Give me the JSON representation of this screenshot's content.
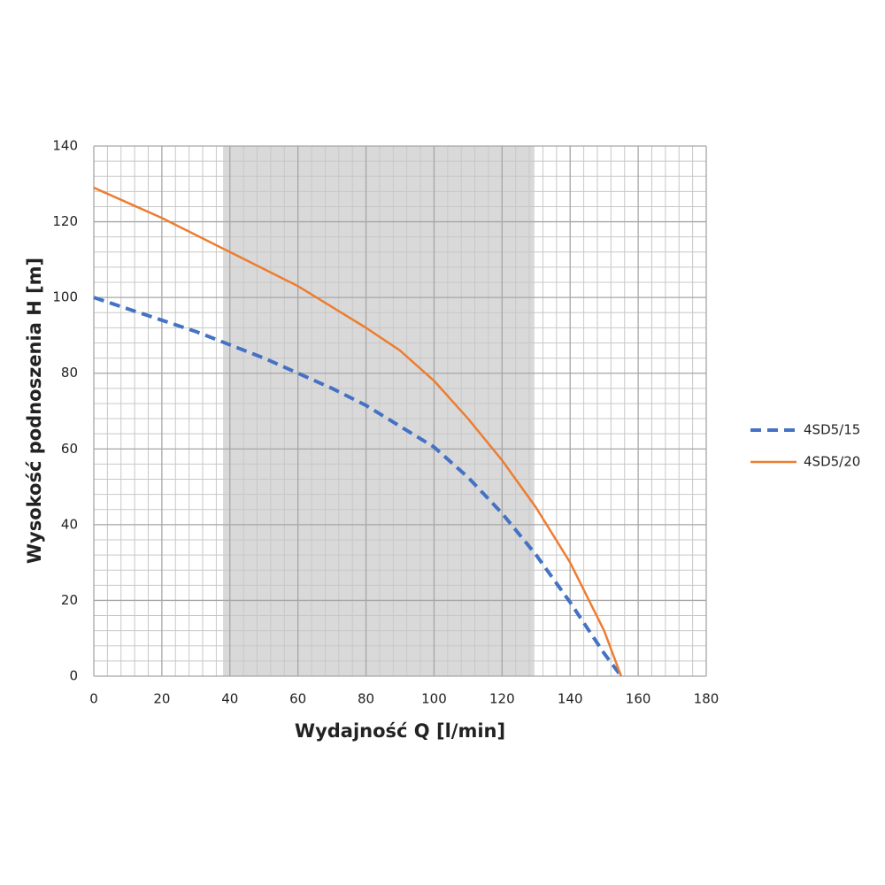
{
  "chart_data": {
    "type": "line",
    "x_label": "Wydajność Q [l/min]",
    "y_label": "Wysokość podnoszenia H [m]",
    "x": [
      0,
      10,
      20,
      30,
      40,
      50,
      60,
      70,
      80,
      90,
      100,
      110,
      120,
      130,
      140,
      150,
      155
    ],
    "series": [
      {
        "name": "4SD5/15",
        "color": "#4472c4",
        "dashed": true,
        "values": [
          100,
          97,
          94,
          91,
          87.5,
          84,
          80,
          76,
          71.5,
          66,
          60.5,
          52.5,
          43,
          32,
          19.5,
          6,
          0
        ]
      },
      {
        "name": "4SD5/20",
        "color": "#ed7d31",
        "dashed": false,
        "values": [
          129,
          125,
          121,
          116.5,
          112,
          107.5,
          103,
          97.5,
          92,
          86,
          78,
          68,
          57,
          44.5,
          30,
          12,
          0
        ]
      }
    ],
    "shaded_range": [
      38,
      129.5
    ],
    "xlim": [
      0,
      180
    ],
    "xticks": [
      0,
      20,
      40,
      60,
      80,
      100,
      120,
      140,
      160,
      180
    ],
    "ylim": [
      0,
      140
    ],
    "yticks": [
      0,
      20,
      40,
      60,
      80,
      100,
      120,
      140
    ],
    "grid": true,
    "legend": "right"
  }
}
